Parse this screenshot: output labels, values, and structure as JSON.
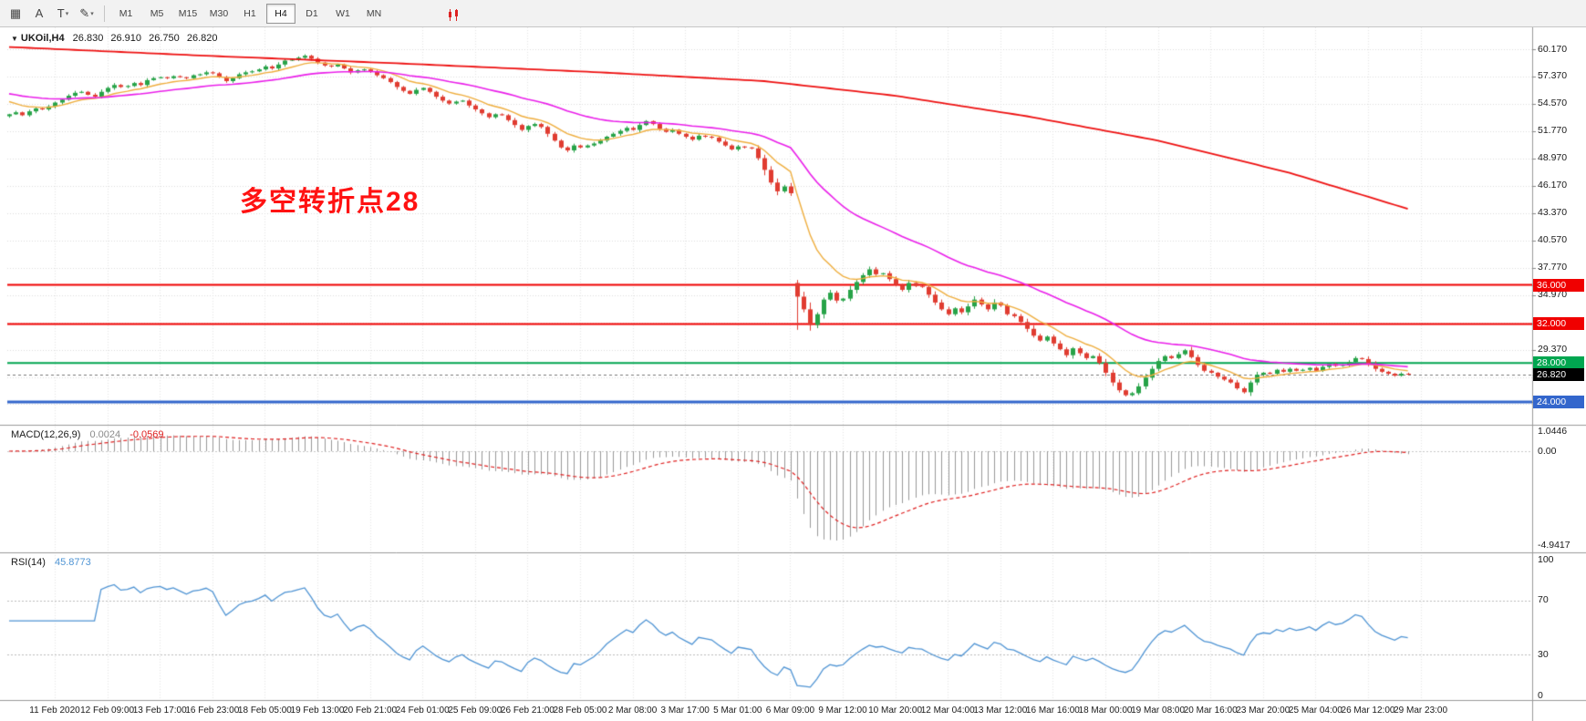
{
  "toolbar": {
    "timeframes": [
      "M1",
      "M5",
      "M15",
      "M30",
      "H1",
      "H4",
      "D1",
      "W1",
      "MN"
    ],
    "active_timeframe": "H4",
    "icon_names": [
      "grid-icon",
      "text-a-icon",
      "text-t-icon",
      "draw-shapes-icon",
      "red-candles-icon"
    ]
  },
  "symbol_line": {
    "symbol": "UKOil,H4",
    "open": "26.830",
    "high": "26.910",
    "low": "26.750",
    "close": "26.820"
  },
  "annotation": {
    "text": "多空转折点28",
    "color": "#ff1212"
  },
  "price_axis": {
    "labels": [
      {
        "text": "60.170",
        "value": 60.17
      },
      {
        "text": "57.370",
        "value": 57.37
      },
      {
        "text": "54.570",
        "value": 54.57
      },
      {
        "text": "51.770",
        "value": 51.77
      },
      {
        "text": "48.970",
        "value": 48.97
      },
      {
        "text": "46.170",
        "value": 46.17
      },
      {
        "text": "43.370",
        "value": 43.37
      },
      {
        "text": "40.570",
        "value": 40.57
      },
      {
        "text": "37.770",
        "value": 37.77
      },
      {
        "text": "34.970",
        "value": 34.97
      },
      {
        "text": "29.370",
        "value": 29.37
      }
    ],
    "level_boxes": [
      {
        "text": "36.000",
        "value": 36,
        "bg": "#f00000"
      },
      {
        "text": "32.000",
        "value": 32,
        "bg": "#f00000"
      },
      {
        "text": "28.000",
        "value": 28,
        "bg": "#00a650"
      },
      {
        "text": "24.000",
        "value": 24,
        "bg": "#3366cc"
      }
    ],
    "current_price_box": {
      "text": "26.820",
      "value": 26.82,
      "bg": "#000000"
    }
  },
  "time_axis": {
    "labels": [
      "11 Feb 2020",
      "12 Feb 09:00",
      "13 Feb 17:00",
      "16 Feb 23:00",
      "18 Feb 05:00",
      "19 Feb 13:00",
      "20 Feb 21:00",
      "24 Feb 01:00",
      "25 Feb 09:00",
      "26 Feb 21:00",
      "28 Feb 05:00",
      "2 Mar 08:00",
      "3 Mar 17:00",
      "5 Mar 01:00",
      "6 Mar 09:00",
      "9 Mar 12:00",
      "10 Mar 20:00",
      "12 Mar 04:00",
      "13 Mar 12:00",
      "16 Mar 16:00",
      "18 Mar 00:00",
      "19 Mar 08:00",
      "20 Mar 16:00",
      "23 Mar 20:00",
      "25 Mar 04:00",
      "26 Mar 12:00",
      "29 Mar 23:00"
    ]
  },
  "indicators": {
    "macd": {
      "title": "MACD(12,26,9)",
      "value_main": "0.0024",
      "value_signal": "-0.0569",
      "axis_labels": [
        "1.0446",
        "0.00",
        "-4.9417"
      ],
      "fast": 12,
      "slow": 26,
      "signal": 9
    },
    "rsi": {
      "title": "RSI(14)",
      "value": "45.8773",
      "axis_labels": [
        "100",
        "70",
        "30",
        "0"
      ],
      "period": 14,
      "levels": [
        70,
        30
      ]
    }
  },
  "chart_data": {
    "type": "candlestick",
    "symbol": "UKOil",
    "timeframe": "H4",
    "first_open": 53.3,
    "closes": [
      53.5,
      53.7,
      53.4,
      53.8,
      54.1,
      54.0,
      54.3,
      54.7,
      55.0,
      55.4,
      55.7,
      55.8,
      55.5,
      55.3,
      55.8,
      56.2,
      56.5,
      56.3,
      56.4,
      56.7,
      56.5,
      57.0,
      57.2,
      57.3,
      57.2,
      57.4,
      57.3,
      57.2,
      57.5,
      57.6,
      57.8,
      57.7,
      57.3,
      56.9,
      57.2,
      57.6,
      57.8,
      57.9,
      58.1,
      58.4,
      58.2,
      58.6,
      59.0,
      59.1,
      59.3,
      59.5,
      59.2,
      58.8,
      58.5,
      58.4,
      58.6,
      58.2,
      57.8,
      58.0,
      58.1,
      57.9,
      57.5,
      57.2,
      56.8,
      56.3,
      55.9,
      55.6,
      56.0,
      56.2,
      55.8,
      55.3,
      54.9,
      54.6,
      54.8,
      54.9,
      54.4,
      54.0,
      53.6,
      53.2,
      53.5,
      53.4,
      52.9,
      52.4,
      51.9,
      52.3,
      52.5,
      52.2,
      51.5,
      50.8,
      50.1,
      49.8,
      50.3,
      50.1,
      50.3,
      50.5,
      50.8,
      51.2,
      51.5,
      51.8,
      52.1,
      51.9,
      52.4,
      52.8,
      52.5,
      52.0,
      51.7,
      51.9,
      51.5,
      51.2,
      50.9,
      51.3,
      51.2,
      51.1,
      50.7,
      50.3,
      49.9,
      50.2,
      50.1,
      50.0,
      49.0,
      47.8,
      46.5,
      45.6,
      46.1,
      45.4,
      34.8,
      33.5,
      31.9,
      33.0,
      34.5,
      35.2,
      34.4,
      34.6,
      35.5,
      36.3,
      37.0,
      37.6,
      37.1,
      37.2,
      36.6,
      36.0,
      35.5,
      36.2,
      35.9,
      35.8,
      35.0,
      34.2,
      33.5,
      33.0,
      33.6,
      33.2,
      33.8,
      34.5,
      34.0,
      33.5,
      34.2,
      33.9,
      33.0,
      32.8,
      32.2,
      31.5,
      30.8,
      30.3,
      30.7,
      30.0,
      29.4,
      28.8,
      29.5,
      29.0,
      28.5,
      28.7,
      28.0,
      27.0,
      26.0,
      25.2,
      24.7,
      24.9,
      25.6,
      26.5,
      27.4,
      28.2,
      28.7,
      28.5,
      28.9,
      29.3,
      28.6,
      27.8,
      27.2,
      27.0,
      26.6,
      26.3,
      26.0,
      25.4,
      25.0,
      26.0,
      26.8,
      27.0,
      26.9,
      27.3,
      27.1,
      27.4,
      27.2,
      27.3,
      27.5,
      27.2,
      27.6,
      27.9,
      27.7,
      27.8,
      28.1,
      28.5,
      28.4,
      27.9,
      27.4,
      27.1,
      26.9,
      26.7,
      26.9,
      26.82
    ],
    "gap_opens": {
      "120": 36.2
    },
    "wick_low_overrides": {
      "120": 31.4
    },
    "current_price": 26.82,
    "hlines": [
      {
        "value": 36,
        "color": "#f00000",
        "width": 2
      },
      {
        "value": 32,
        "color": "#f00000",
        "width": 2
      },
      {
        "value": 28,
        "color": "#00a650",
        "width": 2
      },
      {
        "value": 24,
        "color": "#3366cc",
        "width": 3
      }
    ],
    "moving_averages": {
      "fast_period": 10,
      "fast_color": "#efae3e",
      "mid_period": 34,
      "mid_color": "#ea1fea",
      "slow_color": "#ee1111",
      "slow_points": [
        [
          0,
          60.4
        ],
        [
          30,
          59.5
        ],
        [
          60,
          58.7
        ],
        [
          90,
          57.8
        ],
        [
          115,
          56.9
        ],
        [
          135,
          55.4
        ],
        [
          155,
          53.3
        ],
        [
          175,
          50.8
        ],
        [
          195,
          47.5
        ],
        [
          213,
          43.8
        ]
      ]
    },
    "y_axis": {
      "top_label": 60.17,
      "step": 2.8,
      "gridlines": 14
    },
    "colors": {
      "up": "#27a348",
      "down": "#e03c31",
      "grid": "#dcdcdc",
      "vgrid": "#e6e6e6",
      "macd_hist": "#999999",
      "macd_signal": "#e02222",
      "rsi_line": "#4f94d4"
    }
  }
}
